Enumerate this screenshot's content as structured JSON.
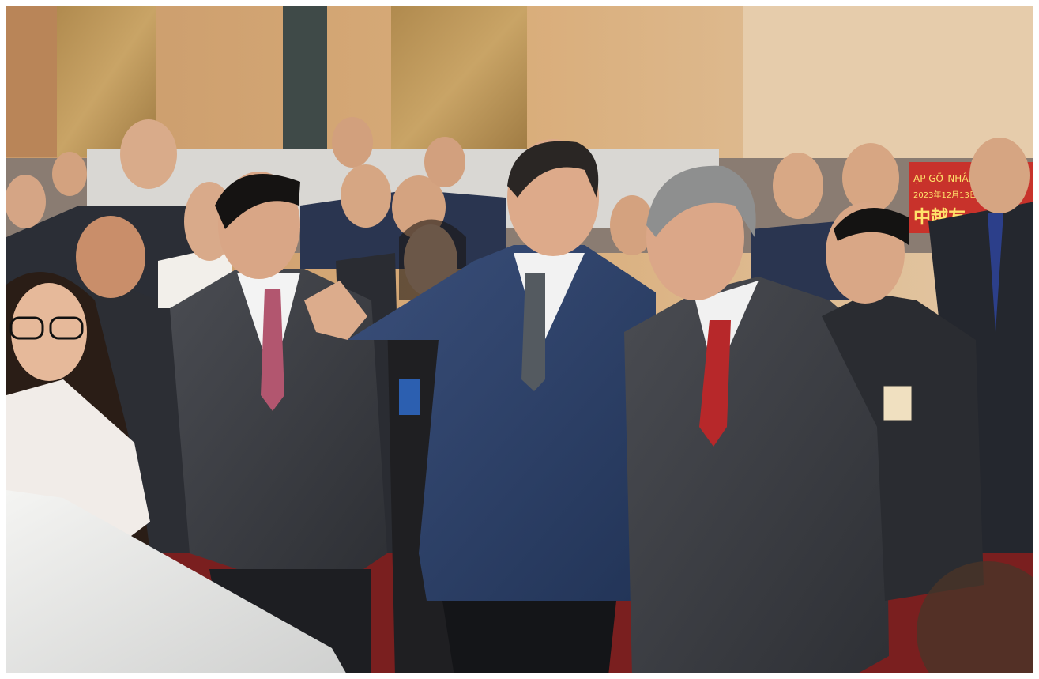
{
  "banner": {
    "line1": "ẠP GỠ NHÂN SỸ HỮU",
    "date": "2023年12月13日",
    "line2": "中越友"
  }
}
